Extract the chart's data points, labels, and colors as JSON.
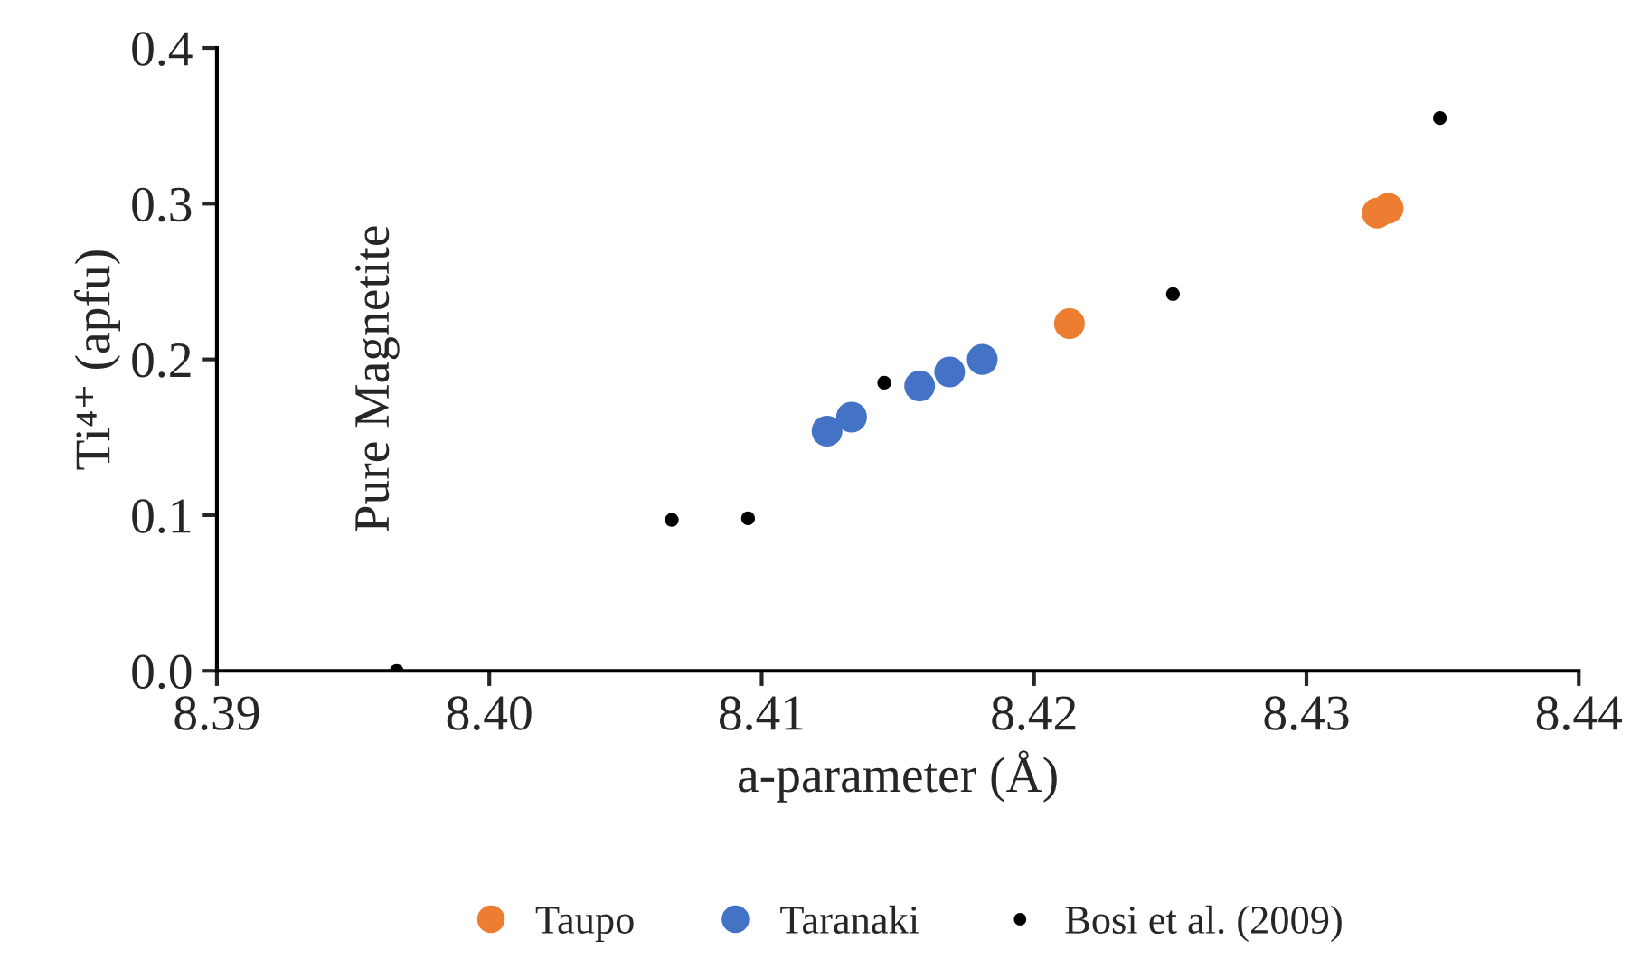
{
  "chart_data": {
    "type": "scatter",
    "xlabel": "a-parameter (Å)",
    "ylabel": "Ti⁴⁺ (apfu)",
    "xlim": [
      8.39,
      8.44
    ],
    "xticks": [
      {
        "value": 8.39,
        "label": "8.39"
      },
      {
        "value": 8.4,
        "label": "8.40"
      },
      {
        "value": 8.41,
        "label": "8.41"
      },
      {
        "value": 8.42,
        "label": "8.42"
      },
      {
        "value": 8.43,
        "label": "8.43"
      },
      {
        "value": 8.44,
        "label": "8.44"
      }
    ],
    "ylim": [
      0,
      0.4
    ],
    "yticks": [
      {
        "value": 0,
        "label": "0.0"
      },
      {
        "value": 0.1,
        "label": "0.1"
      },
      {
        "value": 0.2,
        "label": "0.2"
      },
      {
        "value": 0.3,
        "label": "0.3"
      },
      {
        "value": 0.4,
        "label": "0.4"
      }
    ],
    "grid": false,
    "legend": "bottom",
    "marker": "circle",
    "series": [
      {
        "name": "Taupo",
        "color": "#ed7d31",
        "x": [
          8.4213,
          8.4326,
          8.433
        ],
        "values": [
          0.223,
          0.294,
          0.297
        ]
      },
      {
        "name": "Taranaki",
        "color": "#4472c4",
        "x": [
          8.4124,
          8.4133,
          8.4158,
          8.4169,
          8.4181
        ],
        "values": [
          0.154,
          0.163,
          0.183,
          0.192,
          0.2
        ]
      },
      {
        "name": "Bosi et al. (2009)",
        "color": "#000000",
        "x": [
          8.3966,
          8.4067,
          8.4095,
          8.4145,
          8.4251,
          8.4349
        ],
        "values": [
          0,
          0.097,
          0.098,
          0.185,
          0.242,
          0.355
        ]
      }
    ],
    "annotations": [
      {
        "text": "Pure Magnetite",
        "x": 8.3966,
        "y": 0
      }
    ]
  }
}
